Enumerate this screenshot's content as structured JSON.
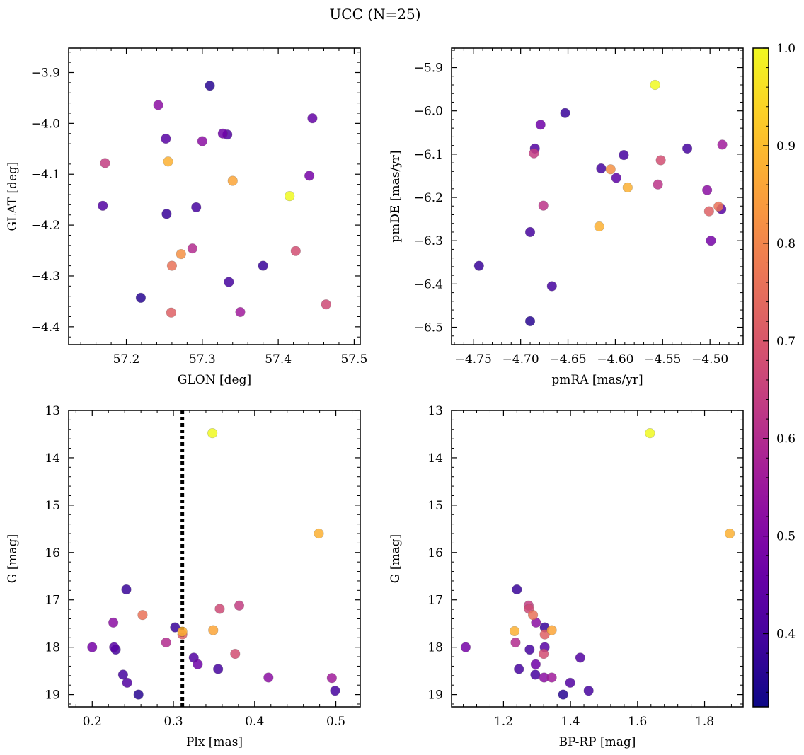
{
  "figure": {
    "title": "UCC (N=25)"
  },
  "colorbar": {
    "ticks": [
      "0.4",
      "0.5",
      "0.6",
      "0.7",
      "0.8",
      "0.9",
      "1.0"
    ],
    "tick_values": [
      0.4,
      0.5,
      0.6,
      0.7,
      0.8,
      0.9,
      1.0
    ],
    "range": [
      0.325,
      1.0
    ],
    "colormap": "plasma"
  },
  "chart_data": [
    {
      "type": "scatter",
      "xlabel": "GLON [deg]",
      "ylabel": "GLAT [deg]",
      "xlim": [
        57.124,
        57.508
      ],
      "ylim": [
        -4.435,
        -3.852
      ],
      "xticks": [
        "57.2",
        "57.3",
        "57.4",
        "57.5"
      ],
      "xtick_values": [
        57.2,
        57.3,
        57.4,
        57.5
      ],
      "yticks": [
        "−3.9",
        "−4.0",
        "−4.1",
        "−4.2",
        "−4.3",
        "−4.4"
      ],
      "ytick_values": [
        -3.9,
        -4.0,
        -4.1,
        -4.2,
        -4.3,
        -4.4
      ],
      "points": [
        {
          "x": 57.31,
          "y": -3.926,
          "c": 0.36
        },
        {
          "x": 57.242,
          "y": -3.964,
          "c": 0.52
        },
        {
          "x": 57.445,
          "y": -3.99,
          "c": 0.45
        },
        {
          "x": 57.252,
          "y": -4.03,
          "c": 0.43
        },
        {
          "x": 57.3,
          "y": -4.035,
          "c": 0.52
        },
        {
          "x": 57.327,
          "y": -4.02,
          "c": 0.47
        },
        {
          "x": 57.333,
          "y": -4.022,
          "c": 0.42
        },
        {
          "x": 57.172,
          "y": -4.078,
          "c": 0.64
        },
        {
          "x": 57.255,
          "y": -4.075,
          "c": 0.88
        },
        {
          "x": 57.34,
          "y": -4.113,
          "c": 0.86
        },
        {
          "x": 57.441,
          "y": -4.103,
          "c": 0.48
        },
        {
          "x": 57.415,
          "y": -4.143,
          "c": 1.0
        },
        {
          "x": 57.169,
          "y": -4.162,
          "c": 0.42
        },
        {
          "x": 57.253,
          "y": -4.178,
          "c": 0.38
        },
        {
          "x": 57.292,
          "y": -4.165,
          "c": 0.4
        },
        {
          "x": 57.287,
          "y": -4.246,
          "c": 0.6
        },
        {
          "x": 57.272,
          "y": -4.257,
          "c": 0.82
        },
        {
          "x": 57.26,
          "y": -4.28,
          "c": 0.76
        },
        {
          "x": 57.423,
          "y": -4.251,
          "c": 0.68
        },
        {
          "x": 57.38,
          "y": -4.28,
          "c": 0.38
        },
        {
          "x": 57.335,
          "y": -4.312,
          "c": 0.4
        },
        {
          "x": 57.219,
          "y": -4.343,
          "c": 0.36
        },
        {
          "x": 57.259,
          "y": -4.372,
          "c": 0.72
        },
        {
          "x": 57.35,
          "y": -4.371,
          "c": 0.56
        },
        {
          "x": 57.463,
          "y": -4.356,
          "c": 0.67
        }
      ]
    },
    {
      "type": "scatter",
      "xlabel": "pmRA [mas/yr]",
      "ylabel": "pmDE [mas/yr]",
      "xlim": [
        -4.773,
        -4.465
      ],
      "ylim": [
        -6.54,
        -5.855
      ],
      "xticks": [
        "−4.75",
        "−4.70",
        "−4.65",
        "−4.60",
        "−4.55",
        "−4.50"
      ],
      "xtick_values": [
        -4.75,
        -4.7,
        -4.65,
        -4.6,
        -4.55,
        -4.5
      ],
      "yticks": [
        "−5.9",
        "−6.0",
        "−6.1",
        "−6.2",
        "−6.3",
        "−6.4",
        "−6.5"
      ],
      "ytick_values": [
        -5.9,
        -6.0,
        -6.1,
        -6.2,
        -6.3,
        -6.4,
        -6.5
      ],
      "points": [
        {
          "x": -4.558,
          "y": -5.94,
          "c": 1.0
        },
        {
          "x": -4.653,
          "y": -6.005,
          "c": 0.38
        },
        {
          "x": -4.679,
          "y": -6.032,
          "c": 0.47
        },
        {
          "x": -4.685,
          "y": -6.087,
          "c": 0.42
        },
        {
          "x": -4.686,
          "y": -6.098,
          "c": 0.64
        },
        {
          "x": -4.591,
          "y": -6.102,
          "c": 0.4
        },
        {
          "x": -4.524,
          "y": -6.087,
          "c": 0.4
        },
        {
          "x": -4.487,
          "y": -6.078,
          "c": 0.56
        },
        {
          "x": -4.615,
          "y": -6.133,
          "c": 0.4
        },
        {
          "x": -4.605,
          "y": -6.135,
          "c": 0.82
        },
        {
          "x": -4.552,
          "y": -6.114,
          "c": 0.68
        },
        {
          "x": -4.599,
          "y": -6.155,
          "c": 0.44
        },
        {
          "x": -4.587,
          "y": -6.177,
          "c": 0.88
        },
        {
          "x": -4.555,
          "y": -6.17,
          "c": 0.62
        },
        {
          "x": -4.503,
          "y": -6.183,
          "c": 0.52
        },
        {
          "x": -4.676,
          "y": -6.219,
          "c": 0.62
        },
        {
          "x": -4.491,
          "y": -6.221,
          "c": 0.76
        },
        {
          "x": -4.488,
          "y": -6.227,
          "c": 0.43
        },
        {
          "x": -4.501,
          "y": -6.232,
          "c": 0.72
        },
        {
          "x": -4.617,
          "y": -6.267,
          "c": 0.88
        },
        {
          "x": -4.69,
          "y": -6.28,
          "c": 0.4
        },
        {
          "x": -4.499,
          "y": -6.3,
          "c": 0.48
        },
        {
          "x": -4.744,
          "y": -6.358,
          "c": 0.38
        },
        {
          "x": -4.667,
          "y": -6.405,
          "c": 0.4
        },
        {
          "x": -4.69,
          "y": -6.486,
          "c": 0.36
        }
      ]
    },
    {
      "type": "scatter",
      "xlabel": "Plx [mas]",
      "ylabel": "G [mag]",
      "xlim": [
        0.171,
        0.53
      ],
      "ylim": [
        19.26,
        13.0
      ],
      "y_inverted": true,
      "xticks": [
        "0.2",
        "0.3",
        "0.4",
        "0.5"
      ],
      "xtick_values": [
        0.2,
        0.3,
        0.4,
        0.5
      ],
      "yticks": [
        "13",
        "14",
        "15",
        "16",
        "17",
        "18",
        "19"
      ],
      "ytick_values": [
        13,
        14,
        15,
        16,
        17,
        18,
        19
      ],
      "vline": {
        "x": 0.311,
        "style": "dotted"
      },
      "points": [
        {
          "x": 0.348,
          "y": 13.48,
          "c": 1.0
        },
        {
          "x": 0.479,
          "y": 15.6,
          "c": 0.88
        },
        {
          "x": 0.242,
          "y": 16.78,
          "c": 0.38
        },
        {
          "x": 0.381,
          "y": 17.12,
          "c": 0.64
        },
        {
          "x": 0.357,
          "y": 17.19,
          "c": 0.67
        },
        {
          "x": 0.262,
          "y": 17.32,
          "c": 0.76
        },
        {
          "x": 0.226,
          "y": 17.48,
          "c": 0.52
        },
        {
          "x": 0.302,
          "y": 17.58,
          "c": 0.38
        },
        {
          "x": 0.349,
          "y": 17.64,
          "c": 0.86
        },
        {
          "x": 0.311,
          "y": 17.67,
          "c": 0.88
        },
        {
          "x": 0.311,
          "y": 17.73,
          "c": 0.72
        },
        {
          "x": 0.291,
          "y": 17.9,
          "c": 0.6
        },
        {
          "x": 0.2,
          "y": 18.0,
          "c": 0.48
        },
        {
          "x": 0.227,
          "y": 18.0,
          "c": 0.43
        },
        {
          "x": 0.229,
          "y": 18.05,
          "c": 0.4
        },
        {
          "x": 0.376,
          "y": 18.14,
          "c": 0.68
        },
        {
          "x": 0.325,
          "y": 18.22,
          "c": 0.42
        },
        {
          "x": 0.33,
          "y": 18.36,
          "c": 0.47
        },
        {
          "x": 0.355,
          "y": 18.46,
          "c": 0.4
        },
        {
          "x": 0.238,
          "y": 18.58,
          "c": 0.4
        },
        {
          "x": 0.417,
          "y": 18.64,
          "c": 0.52
        },
        {
          "x": 0.495,
          "y": 18.65,
          "c": 0.56
        },
        {
          "x": 0.243,
          "y": 18.75,
          "c": 0.42
        },
        {
          "x": 0.499,
          "y": 18.92,
          "c": 0.4
        },
        {
          "x": 0.257,
          "y": 19.0,
          "c": 0.36
        }
      ]
    },
    {
      "type": "scatter",
      "xlabel": "BP-RP [mag]",
      "ylabel": "G [mag]",
      "xlim": [
        1.045,
        1.915
      ],
      "ylim": [
        19.26,
        13.0
      ],
      "y_inverted": true,
      "xticks": [
        "1.2",
        "1.4",
        "1.6",
        "1.8"
      ],
      "xtick_values": [
        1.2,
        1.4,
        1.6,
        1.8
      ],
      "yticks": [
        "13",
        "14",
        "15",
        "16",
        "17",
        "18",
        "19"
      ],
      "ytick_values": [
        13,
        14,
        15,
        16,
        17,
        18,
        19
      ],
      "points": [
        {
          "x": 1.637,
          "y": 13.48,
          "c": 1.0
        },
        {
          "x": 1.875,
          "y": 15.6,
          "c": 0.88
        },
        {
          "x": 1.24,
          "y": 16.78,
          "c": 0.38
        },
        {
          "x": 1.275,
          "y": 17.12,
          "c": 0.64
        },
        {
          "x": 1.276,
          "y": 17.19,
          "c": 0.67
        },
        {
          "x": 1.288,
          "y": 17.32,
          "c": 0.76
        },
        {
          "x": 1.297,
          "y": 17.48,
          "c": 0.52
        },
        {
          "x": 1.323,
          "y": 17.58,
          "c": 0.38
        },
        {
          "x": 1.344,
          "y": 17.64,
          "c": 0.86
        },
        {
          "x": 1.233,
          "y": 17.66,
          "c": 0.88
        },
        {
          "x": 1.323,
          "y": 17.73,
          "c": 0.72
        },
        {
          "x": 1.236,
          "y": 17.9,
          "c": 0.6
        },
        {
          "x": 1.087,
          "y": 18.0,
          "c": 0.48
        },
        {
          "x": 1.323,
          "y": 18.0,
          "c": 0.43
        },
        {
          "x": 1.278,
          "y": 18.05,
          "c": 0.4
        },
        {
          "x": 1.32,
          "y": 18.14,
          "c": 0.68
        },
        {
          "x": 1.429,
          "y": 18.22,
          "c": 0.42
        },
        {
          "x": 1.296,
          "y": 18.36,
          "c": 0.47
        },
        {
          "x": 1.246,
          "y": 18.46,
          "c": 0.4
        },
        {
          "x": 1.295,
          "y": 18.58,
          "c": 0.4
        },
        {
          "x": 1.321,
          "y": 18.64,
          "c": 0.52
        },
        {
          "x": 1.344,
          "y": 18.64,
          "c": 0.56
        },
        {
          "x": 1.399,
          "y": 18.75,
          "c": 0.42
        },
        {
          "x": 1.454,
          "y": 18.92,
          "c": 0.4
        },
        {
          "x": 1.378,
          "y": 19.0,
          "c": 0.36
        }
      ]
    }
  ]
}
